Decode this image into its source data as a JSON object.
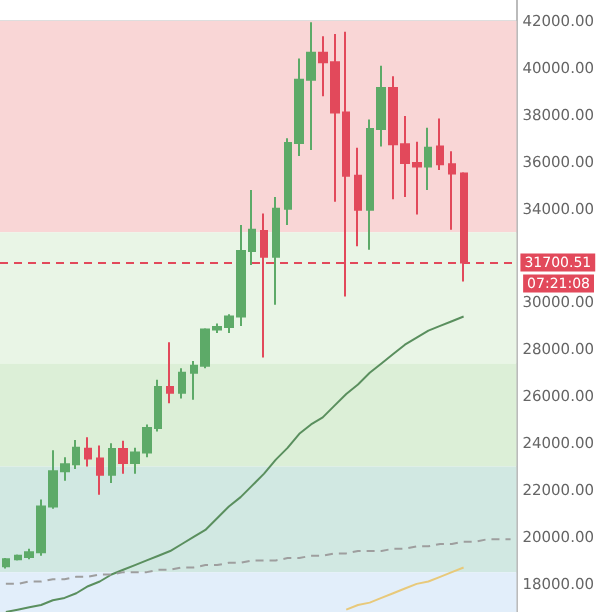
{
  "chart_data": {
    "type": "candlestick",
    "categories": [
      null,
      null,
      null,
      null,
      null,
      null,
      null,
      null,
      null,
      null,
      null,
      null,
      null,
      null,
      null,
      null,
      null,
      null,
      null,
      null,
      null,
      null,
      null,
      null,
      null,
      null,
      null,
      null,
      null,
      null,
      null,
      null,
      null,
      null,
      null,
      null,
      null,
      null,
      null,
      null,
      null,
      null,
      null,
      null
    ],
    "ohlc": [
      [
        18750,
        19100,
        18650,
        19050
      ],
      [
        19050,
        19250,
        19000,
        19200
      ],
      [
        19150,
        19500,
        19050,
        19350
      ],
      [
        19350,
        21600,
        19200,
        21300
      ],
      [
        21300,
        23700,
        21200,
        22800
      ],
      [
        22800,
        23400,
        22400,
        23100
      ],
      [
        23100,
        24130,
        22900,
        23800
      ],
      [
        23760,
        24250,
        23000,
        23350
      ],
      [
        23350,
        23900,
        21800,
        22650
      ],
      [
        22650,
        24000,
        22300,
        23750
      ],
      [
        23750,
        24100,
        22700,
        23150
      ],
      [
        23150,
        23800,
        22700,
        23600
      ],
      [
        23600,
        24800,
        23400,
        24650
      ],
      [
        24650,
        26700,
        24500,
        26400
      ],
      [
        26400,
        28300,
        25700,
        26150
      ],
      [
        26150,
        27200,
        25900,
        27000
      ],
      [
        27000,
        27500,
        25850,
        27300
      ],
      [
        27300,
        28900,
        27200,
        28850
      ],
      [
        28850,
        29100,
        28700,
        28950
      ],
      [
        28950,
        29500,
        28700,
        29400
      ],
      [
        29400,
        33300,
        29000,
        32200
      ],
      [
        32200,
        34800,
        31600,
        33100
      ],
      [
        33050,
        33800,
        27650,
        31950
      ],
      [
        31950,
        34500,
        29900,
        34000
      ],
      [
        34000,
        37000,
        33300,
        36800
      ],
      [
        36800,
        40400,
        36250,
        39500
      ],
      [
        39500,
        41950,
        36500,
        40650
      ],
      [
        40650,
        41350,
        38800,
        40250
      ],
      [
        40250,
        41450,
        34300,
        38100
      ],
      [
        38100,
        41550,
        30250,
        35400
      ],
      [
        35400,
        36600,
        32400,
        33950
      ],
      [
        33950,
        37800,
        32250,
        37400
      ],
      [
        37400,
        40100,
        36650,
        39150
      ],
      [
        39150,
        39650,
        34400,
        36750
      ],
      [
        36750,
        37950,
        34500,
        35950
      ],
      [
        35950,
        36850,
        33750,
        35800
      ],
      [
        35800,
        37450,
        34800,
        36600
      ],
      [
        36650,
        37850,
        35650,
        35900
      ],
      [
        35900,
        36450,
        33100,
        35500
      ],
      [
        35500,
        35550,
        30900,
        31700.51
      ],
      null,
      null,
      null,
      null
    ],
    "colors": [
      "#5daa68",
      "#5daa68",
      "#5daa68",
      "#5daa68",
      "#5daa68",
      "#5daa68",
      "#5daa68",
      "#e2495b",
      "#e2495b",
      "#5daa68",
      "#e2495b",
      "#5daa68",
      "#5daa68",
      "#5daa68",
      "#e2495b",
      "#5daa68",
      "#5daa68",
      "#5daa68",
      "#5daa68",
      "#5daa68",
      "#5daa68",
      "#5daa68",
      "#e2495b",
      "#5daa68",
      "#5daa68",
      "#5daa68",
      "#5daa68",
      "#e2495b",
      "#e2495b",
      "#e2495b",
      "#e2495b",
      "#5daa68",
      "#5daa68",
      "#e2495b",
      "#e2495b",
      "#e2495b",
      "#5daa68",
      "#e2495b",
      "#e2495b",
      "#e2495b",
      null,
      null,
      null,
      null
    ],
    "series": [
      {
        "type": "line",
        "color": "#5a8f5e",
        "line_style": "solid",
        "values": [
          16800,
          16900,
          17000,
          17100,
          17300,
          17400,
          17600,
          17900,
          18100,
          18400,
          18600,
          18800,
          19000,
          19200,
          19400,
          19700,
          20000,
          20300,
          20800,
          21300,
          21700,
          22200,
          22700,
          23300,
          23800,
          24400,
          24800,
          25100,
          25600,
          26100,
          26500,
          27000,
          27400,
          27800,
          28200,
          28500,
          28800,
          29000,
          29200,
          29400,
          null,
          null,
          null,
          null
        ]
      },
      {
        "type": "line",
        "color": "#9e9e9e",
        "line_style": "dashed",
        "values": [
          18000,
          18000,
          18100,
          18100,
          18200,
          18200,
          18300,
          18300,
          18400,
          18400,
          18500,
          18500,
          18500,
          18600,
          18600,
          18700,
          18700,
          18800,
          18800,
          18900,
          18900,
          19000,
          19000,
          19000,
          19100,
          19100,
          19200,
          19200,
          19300,
          19300,
          19400,
          19400,
          19400,
          19500,
          19500,
          19600,
          19600,
          19700,
          19700,
          19800,
          19800,
          19900,
          19900,
          19900
        ]
      },
      {
        "type": "line",
        "color": "#e8c97a",
        "line_style": "solid",
        "values": [
          null,
          null,
          null,
          null,
          null,
          null,
          null,
          null,
          null,
          null,
          null,
          null,
          null,
          null,
          null,
          null,
          null,
          null,
          null,
          null,
          null,
          null,
          null,
          null,
          null,
          null,
          null,
          null,
          null,
          16900,
          17100,
          17200,
          17400,
          17600,
          17800,
          18000,
          18100,
          18300,
          18500,
          18700,
          null,
          null,
          null,
          null
        ]
      }
    ],
    "ylim": [
      16800,
      42900
    ],
    "yticks": [
      {
        "value": 18000,
        "label": "18000.00"
      },
      {
        "value": 20000,
        "label": "20000.00"
      },
      {
        "value": 22000,
        "label": "22000.00"
      },
      {
        "value": 24000,
        "label": "24000.00"
      },
      {
        "value": 26000,
        "label": "26000.00"
      },
      {
        "value": 28000,
        "label": "28000.00"
      },
      {
        "value": 30000,
        "label": "30000.00"
      },
      {
        "value": 34000,
        "label": "34000.00"
      },
      {
        "value": 36000,
        "label": "36000.00"
      },
      {
        "value": 38000,
        "label": "38000.00"
      },
      {
        "value": 40000,
        "label": "40000.00"
      },
      {
        "value": 42000,
        "label": "42000.00"
      }
    ],
    "bands": [
      {
        "axis": "y",
        "from": 33000,
        "to": 42000,
        "color": "#f9d6d6"
      },
      {
        "axis": "y",
        "from": 27400,
        "to": 33000,
        "color": "#e9f5e6"
      },
      {
        "axis": "y",
        "from": 23000,
        "to": 27400,
        "color": "#dcefd7"
      },
      {
        "axis": "y",
        "from": 18500,
        "to": 23000,
        "color": "#d1e8e2"
      },
      {
        "axis": "y",
        "from": 16800,
        "to": 18500,
        "color": "#e2eefa"
      }
    ],
    "ref_lines": [
      {
        "axis": "y",
        "value": 31700.51,
        "label": "31700.51",
        "color": "#e2495b",
        "line_style": "dashed"
      }
    ],
    "annotations": [
      "07:21:08"
    ],
    "grid": "y",
    "tick_labels": "y"
  }
}
